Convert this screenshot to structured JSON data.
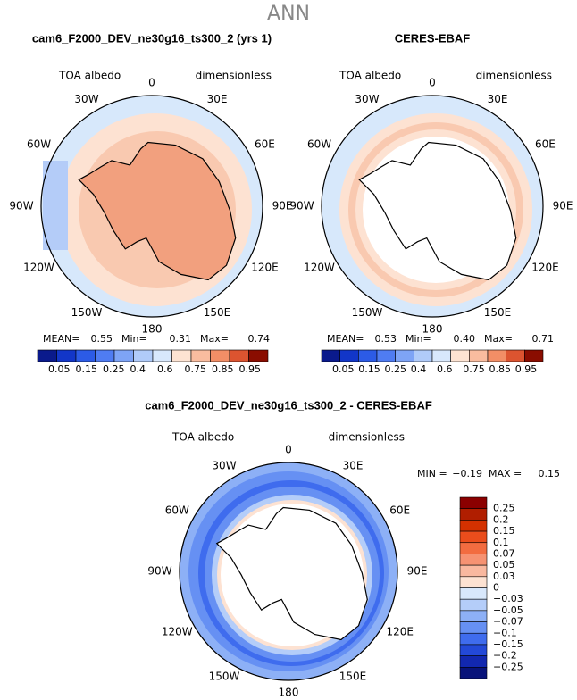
{
  "header": {
    "title": "ANN"
  },
  "panels": [
    {
      "title": "cam6_F2000_DEV_ne30g16_ts300_2 (yrs 1)",
      "left_label": "TOA albedo",
      "right_label": "dimensionless",
      "lon_labels": [
        "0",
        "30E",
        "60E",
        "90E",
        "120E",
        "150E",
        "180",
        "150W",
        "120W",
        "90W",
        "60W",
        "30W"
      ],
      "stats": [
        {
          "label": "MEAN=",
          "value": "0.55"
        },
        {
          "label": "Min=",
          "value": "0.31"
        },
        {
          "label": "Max=",
          "value": "0.74"
        }
      ],
      "colorbar": {
        "labels": [
          "0.05",
          "0.15",
          "0.25",
          "0.4",
          "0.6",
          "0.75",
          "0.85",
          "0.95"
        ],
        "colors": [
          "#0a1a8c",
          "#1236c8",
          "#2c5be6",
          "#4f7cf2",
          "#7ea4f6",
          "#b0cbf9",
          "#d8e8fc",
          "#fde3d2",
          "#f9bc9f",
          "#f28e66",
          "#dc5430",
          "#8a0d00"
        ]
      }
    },
    {
      "title": "CERES-EBAF",
      "left_label": "TOA albedo",
      "right_label": "dimensionless",
      "lon_labels": [
        "0",
        "30E",
        "60E",
        "90E",
        "120E",
        "150E",
        "180",
        "150W",
        "120W",
        "90W",
        "60W",
        "30W"
      ],
      "stats": [
        {
          "label": "MEAN=",
          "value": "0.53"
        },
        {
          "label": "Min=",
          "value": "0.40"
        },
        {
          "label": "Max=",
          "value": "0.71"
        }
      ],
      "colorbar": {
        "labels": [
          "0.05",
          "0.15",
          "0.25",
          "0.4",
          "0.6",
          "0.75",
          "0.85",
          "0.95"
        ],
        "colors": [
          "#0a1a8c",
          "#1236c8",
          "#2c5be6",
          "#4f7cf2",
          "#7ea4f6",
          "#b0cbf9",
          "#d8e8fc",
          "#fde3d2",
          "#f9bc9f",
          "#f28e66",
          "#dc5430",
          "#8a0d00"
        ]
      }
    }
  ],
  "difference": {
    "title": "cam6_F2000_DEV_ne30g16_ts300_2 - CERES-EBAF",
    "left_label": "TOA albedo",
    "right_label": "dimensionless",
    "lon_labels": [
      "0",
      "30E",
      "60E",
      "90E",
      "120E",
      "150E",
      "180",
      "150W",
      "120W",
      "90W",
      "60W",
      "30W"
    ],
    "stats": [
      {
        "label": "MIN =",
        "value": "−0.19"
      },
      {
        "label": "MAX =",
        "value": "0.15"
      }
    ],
    "colorbar": {
      "labels": [
        "0.25",
        "0.2",
        "0.15",
        "0.1",
        "0.07",
        "0.05",
        "0.03",
        "0",
        "−0.03",
        "−0.05",
        "−0.07",
        "−0.1",
        "−0.15",
        "−0.2",
        "−0.25"
      ],
      "colors": [
        "#8b0000",
        "#b01e00",
        "#d43100",
        "#ea4d1c",
        "#f26c40",
        "#f69272",
        "#f9b89f",
        "#fde2d2",
        "#d8e8fc",
        "#b4cdf9",
        "#8db0f6",
        "#6690f3",
        "#3f6cee",
        "#2349d8",
        "#1228b0",
        "#08137a"
      ]
    }
  }
}
